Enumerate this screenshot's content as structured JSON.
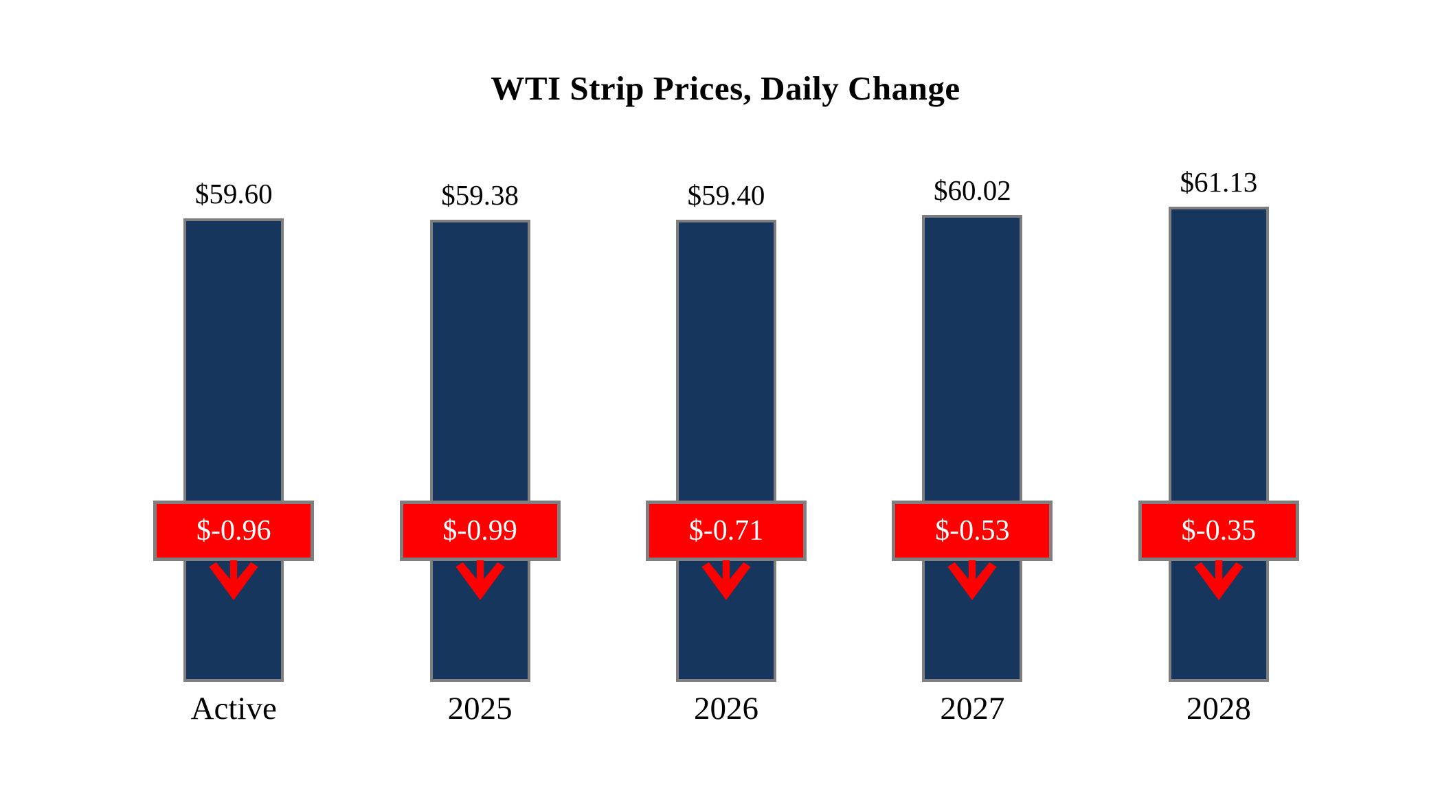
{
  "title": "WTI Strip Prices, Daily Change",
  "chart_data": {
    "type": "bar",
    "title": "WTI Strip Prices, Daily Change",
    "categories": [
      "Active",
      "2025",
      "2026",
      "2027",
      "2028"
    ],
    "values": [
      59.6,
      59.38,
      59.4,
      60.02,
      61.13
    ],
    "price_labels": [
      "$59.60",
      "$59.38",
      "$59.40",
      "$60.02",
      "$61.13"
    ],
    "daily_changes": [
      -0.96,
      -0.99,
      -0.71,
      -0.53,
      -0.35
    ],
    "change_labels": [
      "$-0.96",
      "$-0.99",
      "$-0.71",
      "$-0.53",
      "$-0.35"
    ],
    "xlabel": "",
    "ylabel": "",
    "ylim": [
      0,
      65
    ],
    "baseline": 0,
    "grid": false,
    "legend": false,
    "axes_visible": false,
    "annotation_style": "red badge with downward red arrow under each bar top label"
  },
  "colors": {
    "bar_fill": "#17365D",
    "bar_border": "#7F7F7F",
    "badge_fill": "#FF0000",
    "badge_border": "#7F7F7F",
    "badge_text": "#FFFFFF",
    "arrow": "#FF0000",
    "title_text": "#000000",
    "label_text": "#000000"
  }
}
